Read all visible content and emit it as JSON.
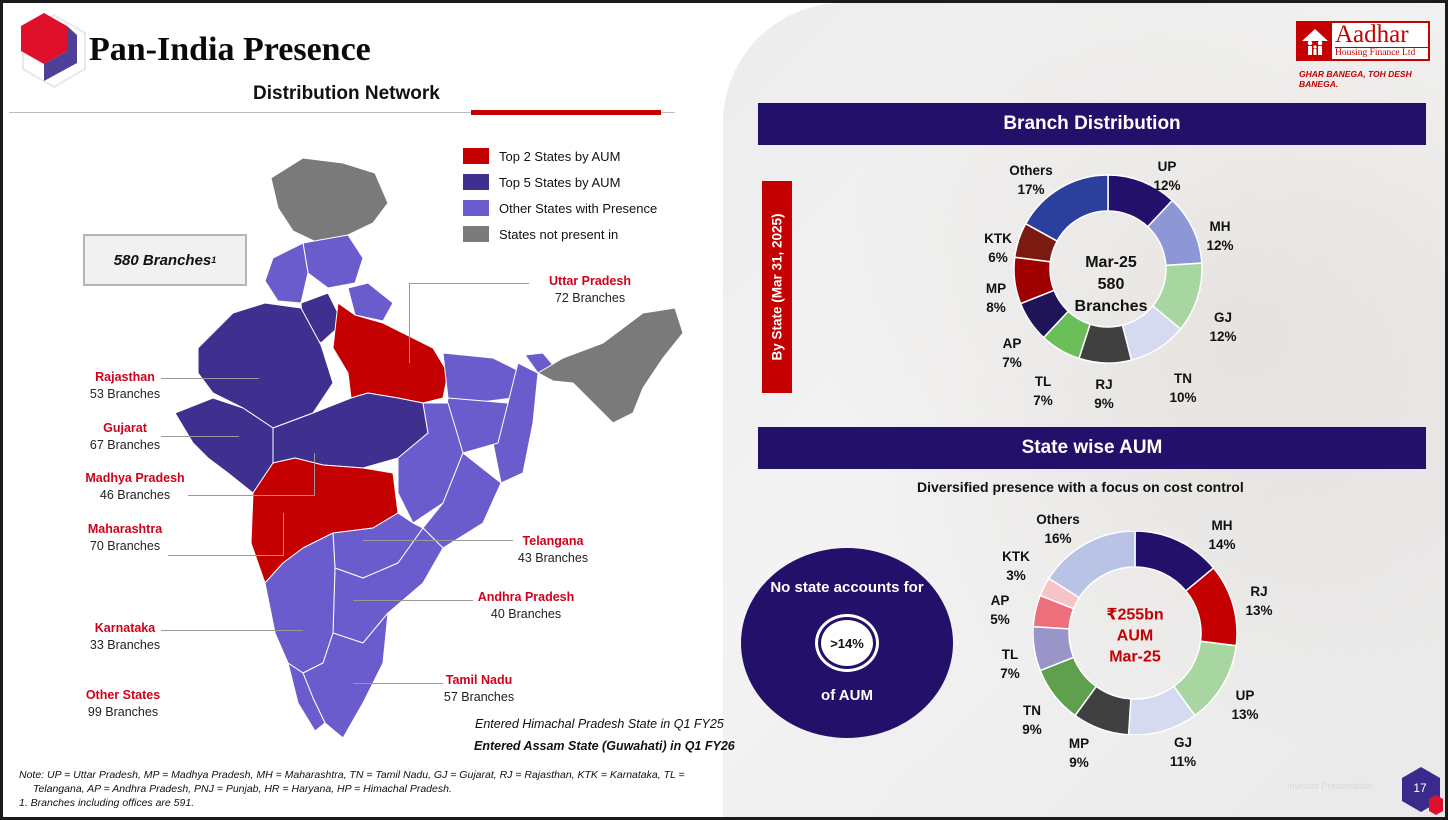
{
  "header": {
    "title": "Pan-India Presence",
    "subtitle": "Distribution Network"
  },
  "logo": {
    "name": "Aadhar",
    "sub": "Housing Finance Ltd",
    "tagline": "GHAR BANEGA, TOH DESH BANEGA."
  },
  "legend": [
    {
      "label": "Top 2 States by AUM",
      "color": "#c40000"
    },
    {
      "label": "Top 5 States by AUM",
      "color": "#3f2f8f"
    },
    {
      "label": "Other States with Presence",
      "color": "#6a5ccc"
    },
    {
      "label": "States not present in",
      "color": "#7a7a7a"
    }
  ],
  "branch_box": {
    "text": "580 Branches",
    "sup": "1"
  },
  "states": [
    {
      "name": "Uttar Pradesh",
      "branches": "72 Branches"
    },
    {
      "name": "Rajasthan",
      "branches": "53 Branches"
    },
    {
      "name": "Gujarat",
      "branches": "67 Branches"
    },
    {
      "name": "Madhya Pradesh",
      "branches": "46 Branches"
    },
    {
      "name": "Maharashtra",
      "branches": "70 Branches"
    },
    {
      "name": "Telangana",
      "branches": "43 Branches"
    },
    {
      "name": "Andhra Pradesh",
      "branches": "40 Branches"
    },
    {
      "name": "Karnataka",
      "branches": "33 Branches"
    },
    {
      "name": "Tamil Nadu",
      "branches": "57 Branches"
    },
    {
      "name": "Other States",
      "branches": "99 Branches"
    }
  ],
  "entered": [
    "Entered Himachal Pradesh State in Q1 FY25",
    "Entered Assam State (Guwahati) in Q1 FY26"
  ],
  "notes": [
    "Note: UP = Uttar Pradesh, MP = Madhya Pradesh, MH = Maharashtra, TN = Tamil Nadu, GJ = Gujarat, RJ = Rajasthan, KTK = Karnataka, TL =",
    "Telangana, AP = Andhra Pradesh, PNJ = Punjab, HR = Haryana, HP = Himachal Pradesh.",
    "1. Branches including offices are 591."
  ],
  "branch_section": {
    "title": "Branch Distribution",
    "side_label": "By State (Mar 31, 2025)",
    "center": [
      "Mar-25",
      "580",
      "Branches"
    ]
  },
  "aum_section": {
    "title": "State wise AUM",
    "focus": "Diversified presence with a focus on cost control",
    "circle_top": "No state accounts for",
    "circle_mid": ">14%",
    "circle_bottom": "of AUM",
    "center": [
      "₹255bn",
      "AUM",
      "Mar-25"
    ]
  },
  "page_number": "17",
  "chart_data": [
    {
      "type": "pie",
      "title": "Branch Distribution",
      "categories": [
        "UP",
        "MH",
        "GJ",
        "TN",
        "RJ",
        "TL",
        "AP",
        "MP",
        "KTK",
        "Others"
      ],
      "values": [
        12,
        12,
        12,
        10,
        9,
        7,
        7,
        8,
        6,
        17
      ],
      "labels": [
        "12%",
        "12%",
        "12%",
        "10%",
        "9%",
        "7%",
        "7%",
        "8%",
        "6%",
        "17%"
      ],
      "colors": [
        "#22106b",
        "#8e97d6",
        "#a8d6a0",
        "#d6daf0",
        "#404040",
        "#6bbf59",
        "#1e1456",
        "#a00000",
        "#7a1a10",
        "#2c3f9c"
      ]
    },
    {
      "type": "pie",
      "title": "State wise AUM",
      "categories": [
        "MH",
        "RJ",
        "UP",
        "GJ",
        "MP",
        "TN",
        "TL",
        "AP",
        "KTK",
        "Others"
      ],
      "values": [
        14,
        13,
        13,
        11,
        9,
        9,
        7,
        5,
        3,
        16
      ],
      "labels": [
        "14%",
        "13%",
        "13%",
        "11%",
        "9%",
        "9%",
        "7%",
        "5%",
        "3%",
        "16%"
      ],
      "colors": [
        "#22106b",
        "#c40000",
        "#a8d6a0",
        "#d6daf0",
        "#404040",
        "#5fa04e",
        "#9a95c8",
        "#ee6f7c",
        "#f6c3c8",
        "#b9c3e6"
      ]
    }
  ]
}
